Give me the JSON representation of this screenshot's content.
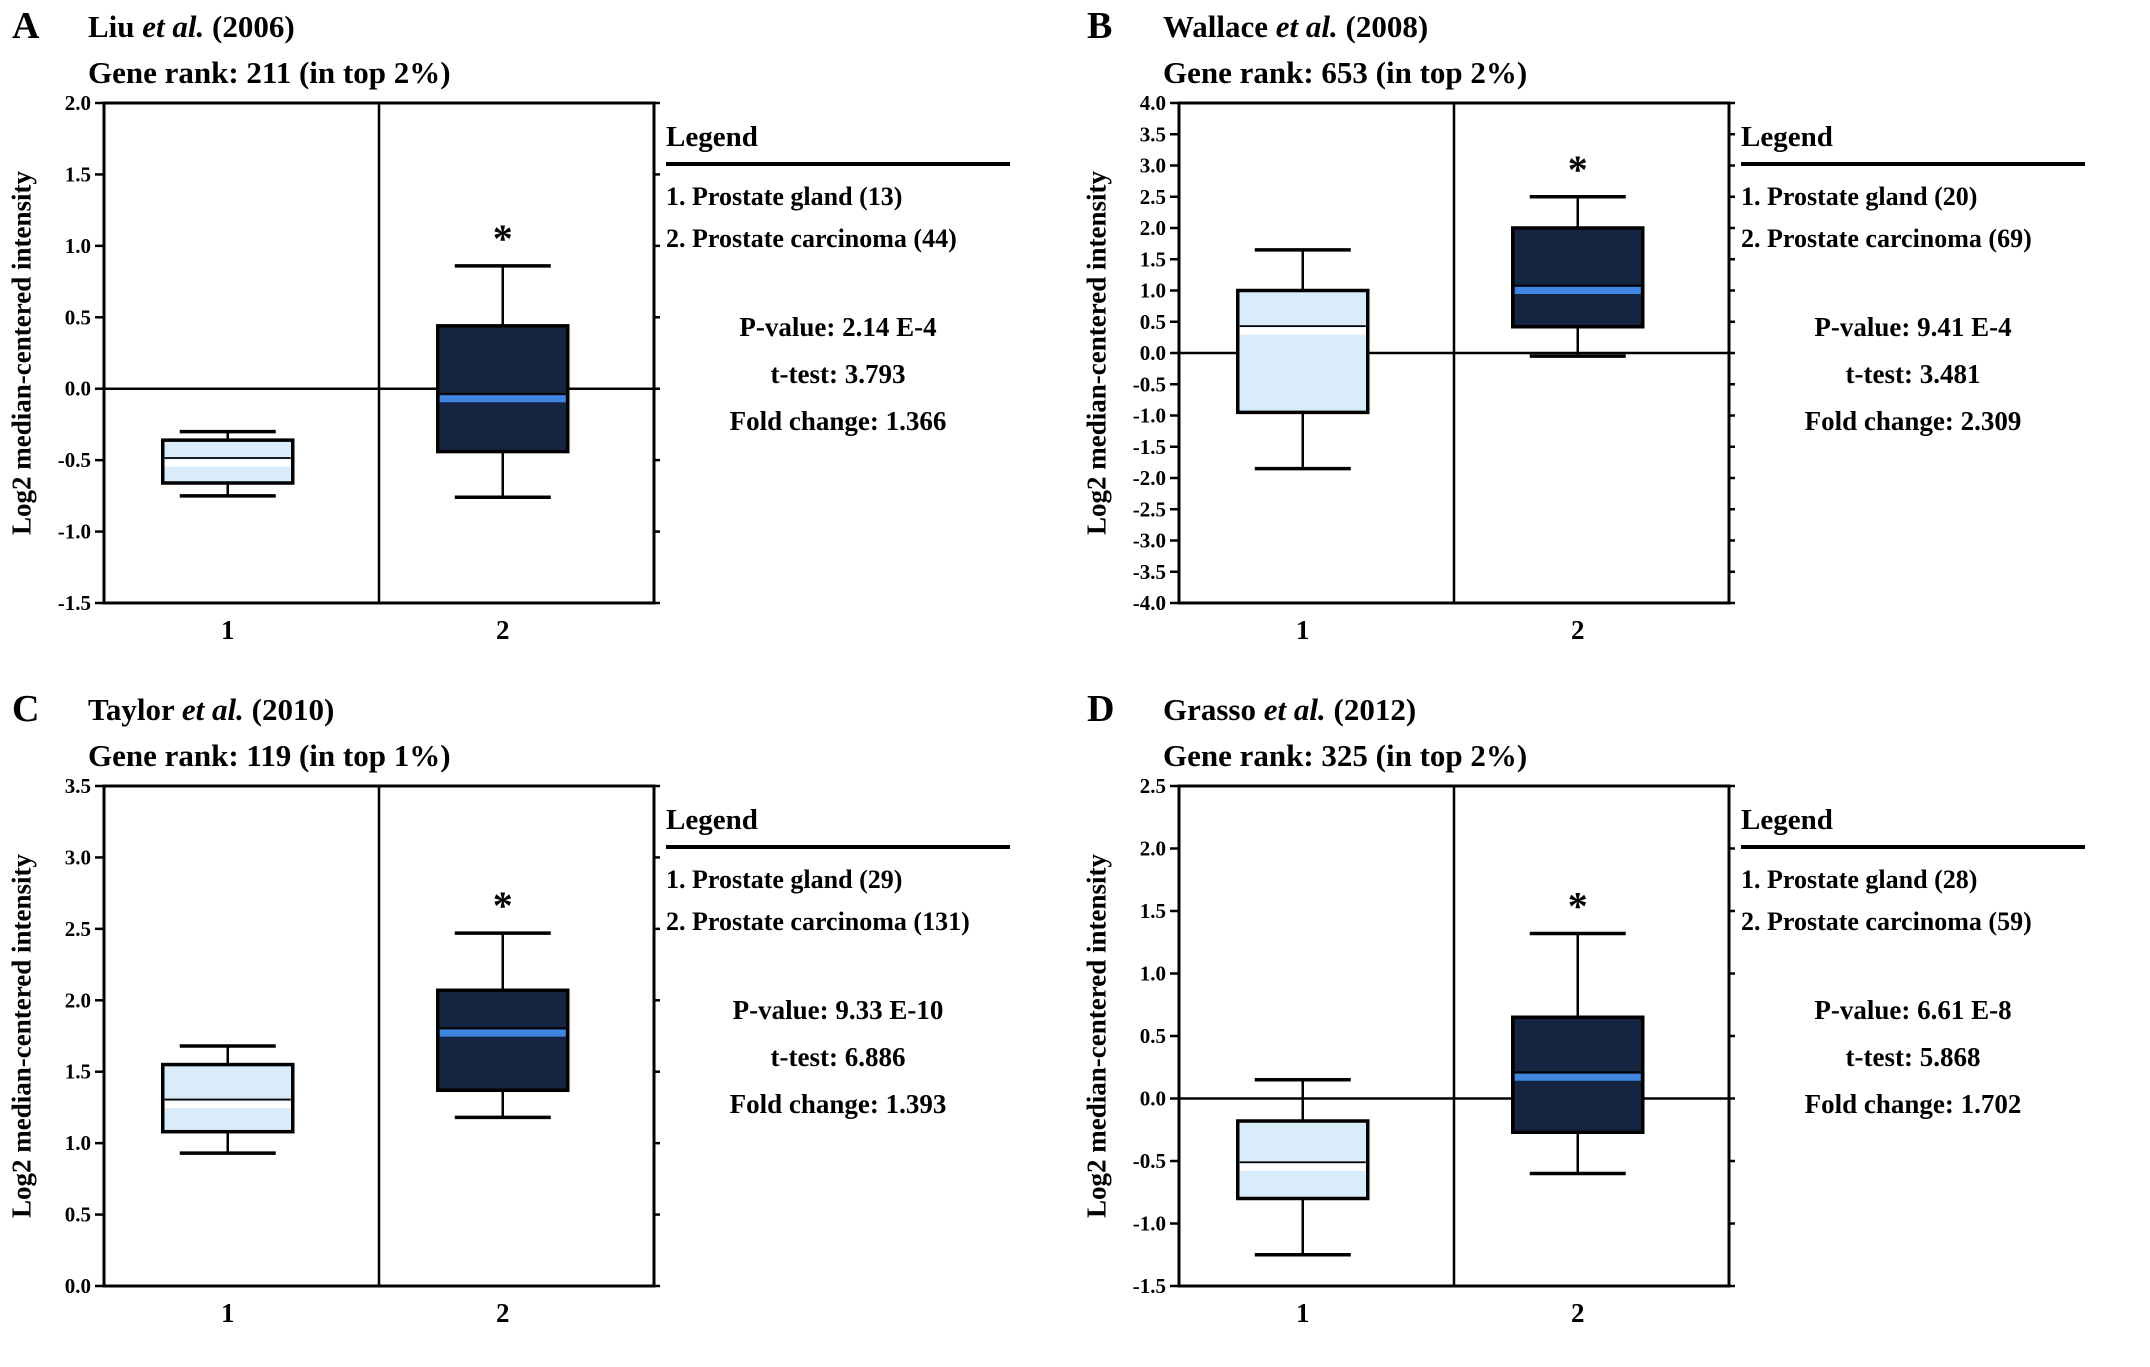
{
  "chart_data": [
    {
      "type": "box",
      "panel_letter": "A",
      "title": {
        "author": "Liu",
        "etal": "et al.",
        "year": "(2006)"
      },
      "subtitle": "Gene rank: 211 (in top 2%)",
      "ylabel": "Log2 median-centered intensity",
      "ylim": [
        -1.5,
        2.0
      ],
      "ytick_step": 0.5,
      "categories": [
        "1",
        "2"
      ],
      "zero_line": true,
      "legend": {
        "heading": "Legend",
        "items": [
          "1. Prostate gland (13)",
          "2. Prostate carcinoma (44)"
        ],
        "stats": [
          "P-value: 2.14 E-4",
          "t-test: 3.793",
          "Fold change: 1.366"
        ]
      },
      "series": [
        {
          "name": "Prostate gland",
          "n": 13,
          "whisker_low": -0.75,
          "q1": -0.66,
          "median": -0.52,
          "q3": -0.36,
          "whisker_high": -0.3,
          "fill": "#d9ecf9",
          "median_color": "#ffffff"
        },
        {
          "name": "Prostate carcinoma",
          "n": 44,
          "whisker_low": -0.76,
          "q1": -0.44,
          "median": -0.07,
          "q3": 0.44,
          "whisker_high": 0.86,
          "fill": "#152440",
          "median_color": "#3f86e0",
          "significance": "*"
        }
      ]
    },
    {
      "type": "box",
      "panel_letter": "B",
      "title": {
        "author": "Wallace",
        "etal": "et al.",
        "year": "(2008)"
      },
      "subtitle": "Gene rank: 653 (in top 2%)",
      "ylabel": "Log2 median-centered intensity",
      "ylim": [
        -4.0,
        4.0
      ],
      "ytick_step": 0.5,
      "categories": [
        "1",
        "2"
      ],
      "zero_line": true,
      "legend": {
        "heading": "Legend",
        "items": [
          "1. Prostate gland (20)",
          "2. Prostate carcinoma (69)"
        ],
        "stats": [
          "P-value:  9.41 E-4",
          "t-test:  3.481",
          "Fold change: 2.309"
        ]
      },
      "series": [
        {
          "name": "Prostate gland",
          "n": 20,
          "whisker_low": -1.85,
          "q1": -0.95,
          "median": 0.35,
          "q3": 1.0,
          "whisker_high": 1.65,
          "fill": "#d9ecf9",
          "median_color": "#ffffff"
        },
        {
          "name": "Prostate carcinoma",
          "n": 69,
          "whisker_low": -0.05,
          "q1": 0.42,
          "median": 1.0,
          "q3": 2.0,
          "whisker_high": 2.5,
          "fill": "#152440",
          "median_color": "#3f86e0",
          "significance": "*"
        }
      ]
    },
    {
      "type": "box",
      "panel_letter": "C",
      "title": {
        "author": "Taylor",
        "etal": "et al.",
        "year": "(2010)"
      },
      "subtitle": "Gene rank: 119 (in top 1%)",
      "ylabel": "Log2 median-centered intensity",
      "ylim": [
        0.0,
        3.5
      ],
      "ytick_step": 0.5,
      "categories": [
        "1",
        "2"
      ],
      "zero_line": false,
      "legend": {
        "heading": "Legend",
        "items": [
          "1. Prostate gland (29)",
          "2. Prostate carcinoma (131)"
        ],
        "stats": [
          "P-value:  9.33 E-10",
          "t-test:  6.886",
          "Fold change: 1.393"
        ]
      },
      "series": [
        {
          "name": "Prostate gland",
          "n": 29,
          "whisker_low": 0.93,
          "q1": 1.08,
          "median": 1.27,
          "q3": 1.55,
          "whisker_high": 1.68,
          "fill": "#d9ecf9",
          "median_color": "#ffffff"
        },
        {
          "name": "Prostate carcinoma",
          "n": 131,
          "whisker_low": 1.18,
          "q1": 1.37,
          "median": 1.77,
          "q3": 2.07,
          "whisker_high": 2.47,
          "fill": "#152440",
          "median_color": "#3f86e0",
          "significance": "*"
        }
      ]
    },
    {
      "type": "box",
      "panel_letter": "D",
      "title": {
        "author": "Grasso",
        "etal": "et al.",
        "year": "(2012)"
      },
      "subtitle": "Gene rank: 325 (in top 2%)",
      "ylabel": "Log2 median-centered intensity",
      "ylim": [
        -1.5,
        2.5
      ],
      "ytick_step": 0.5,
      "categories": [
        "1",
        "2"
      ],
      "zero_line": true,
      "legend": {
        "heading": "Legend",
        "items": [
          "1. Prostate gland (28)",
          "2. Prostate carcinoma (59)"
        ],
        "stats": [
          "P-value: 6.61 E-8",
          "t-test: 5.868",
          "Fold change: 1.702"
        ]
      },
      "series": [
        {
          "name": "Prostate gland",
          "n": 28,
          "whisker_low": -1.25,
          "q1": -0.8,
          "median": -0.55,
          "q3": -0.18,
          "whisker_high": 0.15,
          "fill": "#d9ecf9",
          "median_color": "#ffffff"
        },
        {
          "name": "Prostate carcinoma",
          "n": 59,
          "whisker_low": -0.6,
          "q1": -0.27,
          "median": 0.17,
          "q3": 0.65,
          "whisker_high": 1.32,
          "fill": "#152440",
          "median_color": "#3f86e0",
          "significance": "*"
        }
      ]
    }
  ]
}
